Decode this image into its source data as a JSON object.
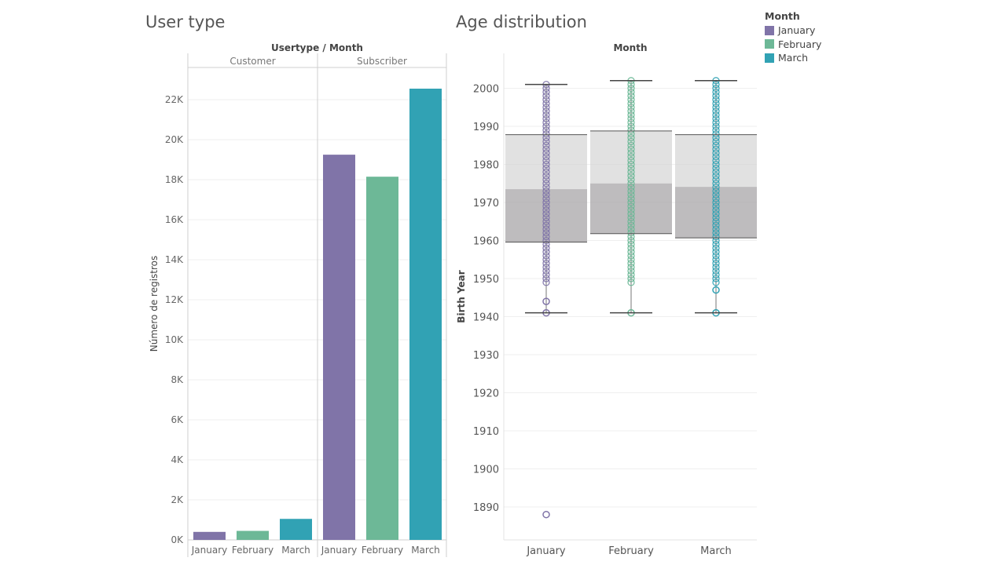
{
  "titles": {
    "left": "User type",
    "right": "Age distribution"
  },
  "colors": {
    "January": "#8074a8",
    "February": "#6db897",
    "March": "#31a2b4"
  },
  "legend": {
    "title": "Month",
    "items": [
      {
        "label": "January",
        "color": "#8074a8"
      },
      {
        "label": "February",
        "color": "#6db897"
      },
      {
        "label": "March",
        "color": "#31a2b4"
      }
    ]
  },
  "chart_data": [
    {
      "type": "bar",
      "title": "User type",
      "header": "Usertype / Month",
      "panels": [
        "Customer",
        "Subscriber"
      ],
      "categories": [
        "January",
        "February",
        "March"
      ],
      "series": [
        {
          "panel": "Customer",
          "values": [
            400,
            450,
            1050
          ]
        },
        {
          "panel": "Subscriber",
          "values": [
            19250,
            18150,
            22550
          ]
        }
      ],
      "ylabel": "Número de registros",
      "ylim": [
        0,
        24000
      ],
      "yticks": [
        0,
        2000,
        4000,
        6000,
        8000,
        10000,
        12000,
        14000,
        16000,
        18000,
        20000,
        22000
      ],
      "yticklabels": [
        "0K",
        "2K",
        "4K",
        "6K",
        "8K",
        "10K",
        "12K",
        "14K",
        "16K",
        "18K",
        "20K",
        "22K"
      ],
      "grid": true
    },
    {
      "type": "boxplot",
      "title": "Age distribution",
      "header": "Month",
      "categories": [
        "January",
        "February",
        "March"
      ],
      "ylabel": "Birth Year",
      "ylim": [
        1880,
        2010
      ],
      "yticks": [
        1890,
        1900,
        1910,
        1920,
        1930,
        1940,
        1950,
        1960,
        1970,
        1980,
        1990,
        2000
      ],
      "grid": true,
      "boxes": [
        {
          "month": "January",
          "whisker_low": 1941,
          "q1": 1959.6,
          "median": 1973.5,
          "q3": 1987.8,
          "whisker_high": 2001,
          "outliers": [
            1944,
            1888
          ]
        },
        {
          "month": "February",
          "whisker_low": 1941,
          "q1": 1961.8,
          "median": 1975,
          "q3": 1988.8,
          "whisker_high": 2002,
          "outliers": []
        },
        {
          "month": "March",
          "whisker_low": 1941,
          "q1": 1960.7,
          "median": 1974.1,
          "q3": 1987.8,
          "whisker_high": 2002,
          "outliers": [
            1947
          ]
        }
      ],
      "points_range": [
        [
          1949,
          2001
        ],
        [
          1949,
          2002
        ],
        [
          1949,
          2002
        ]
      ]
    }
  ]
}
